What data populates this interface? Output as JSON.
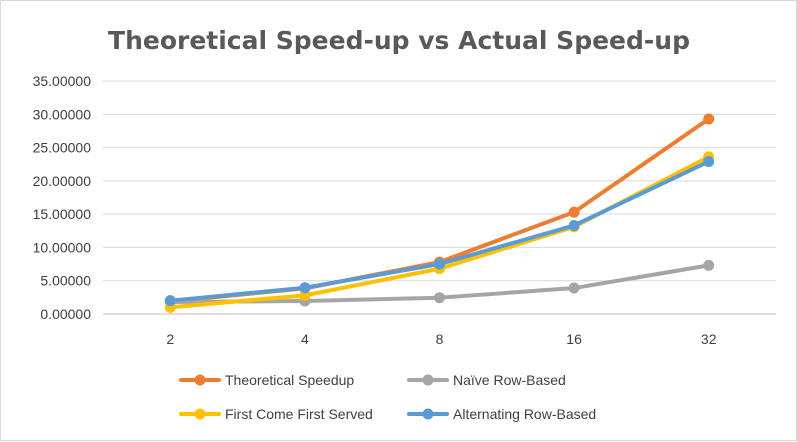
{
  "chart_data": {
    "type": "line",
    "title": "Theoretical Speed-up vs Actual Speed-up",
    "xlabel": "",
    "ylabel": "",
    "categories": [
      "2",
      "4",
      "8",
      "16",
      "32"
    ],
    "ylim": [
      0,
      35
    ],
    "yticks": [
      "0.00000",
      "5.00000",
      "10.00000",
      "15.00000",
      "20.00000",
      "25.00000",
      "30.00000",
      "35.00000"
    ],
    "grid": true,
    "legend_position": "bottom",
    "series": [
      {
        "name": "Theoretical Speedup",
        "color": "#ed7d31",
        "values": [
          1.9,
          3.85,
          7.8,
          15.3,
          29.3
        ]
      },
      {
        "name": "Naïve Row-Based",
        "color": "#a5a5a5",
        "values": [
          1.8,
          1.95,
          2.45,
          3.9,
          7.3
        ]
      },
      {
        "name": "First Come First Served",
        "color": "#ffc000",
        "values": [
          1.0,
          2.8,
          6.8,
          13.1,
          23.6
        ]
      },
      {
        "name": "Alternating Row-Based",
        "color": "#5b9bd5",
        "values": [
          2.0,
          3.95,
          7.5,
          13.3,
          22.9
        ]
      }
    ]
  }
}
